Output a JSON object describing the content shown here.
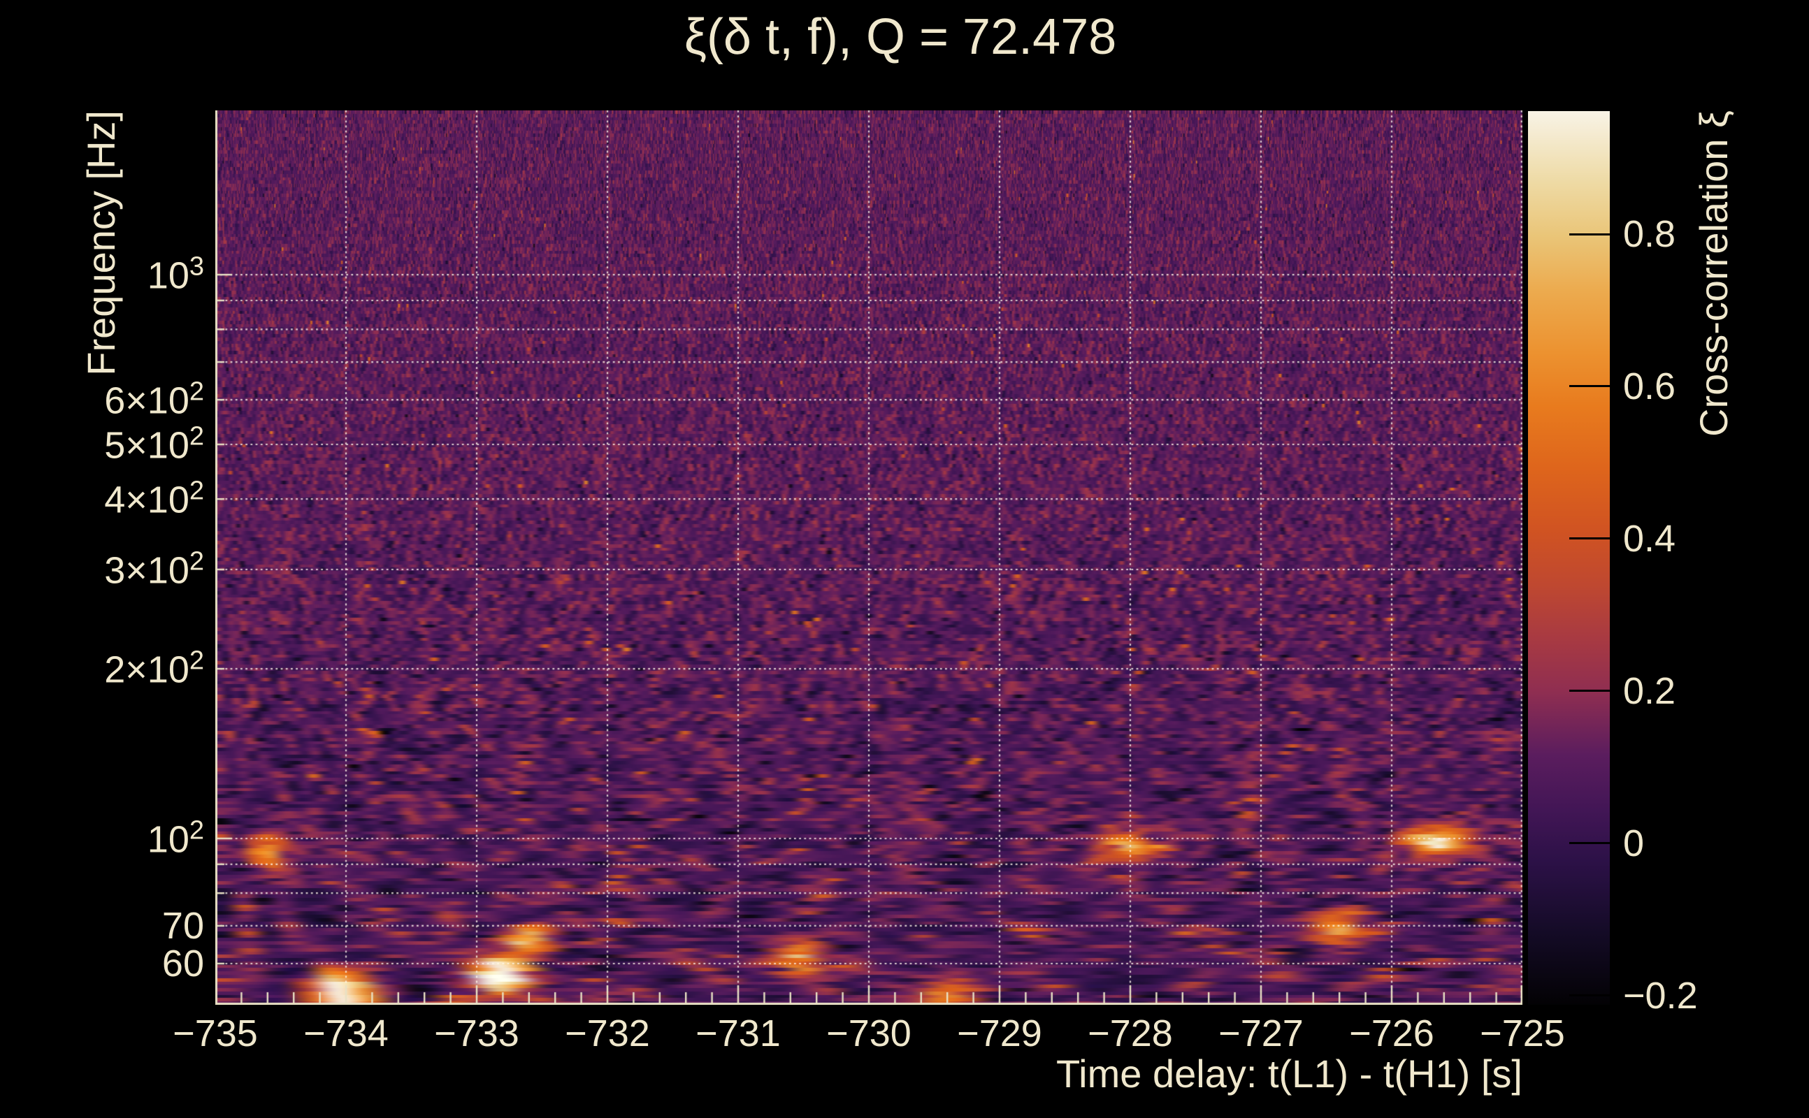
{
  "title": {
    "text": "ξ(δ t, f), Q = 72.478"
  },
  "axes": {
    "x": {
      "label": "Time delay: t(L1) - t(H1) [s]",
      "range": [
        -735,
        -725
      ],
      "minor_step": 0.2,
      "ticks": [
        {
          "value": -735,
          "label": "−735"
        },
        {
          "value": -734,
          "label": "−734"
        },
        {
          "value": -733,
          "label": "−733"
        },
        {
          "value": -732,
          "label": "−732"
        },
        {
          "value": -731,
          "label": "−731"
        },
        {
          "value": -730,
          "label": "−730"
        },
        {
          "value": -729,
          "label": "−729"
        },
        {
          "value": -728,
          "label": "−728"
        },
        {
          "value": -727,
          "label": "−727"
        },
        {
          "value": -726,
          "label": "−726"
        },
        {
          "value": -725,
          "label": "−725"
        }
      ]
    },
    "y": {
      "label": "Frequency [Hz]",
      "scale": "log",
      "range": [
        50.7,
        1956
      ],
      "ticks": [
        {
          "value": 1000,
          "base": "10",
          "exp": "3"
        },
        {
          "value": 600,
          "base": "6×10",
          "exp": "2"
        },
        {
          "value": 500,
          "base": "5×10",
          "exp": "2"
        },
        {
          "value": 400,
          "base": "4×10",
          "exp": "2"
        },
        {
          "value": 300,
          "base": "3×10",
          "exp": "2"
        },
        {
          "value": 200,
          "base": "2×10",
          "exp": "2"
        },
        {
          "value": 100,
          "base": "10",
          "exp": "2"
        },
        {
          "value": 70,
          "base": "70",
          "exp": ""
        },
        {
          "value": 60,
          "base": "60",
          "exp": ""
        }
      ],
      "gridlines": [
        1000,
        900,
        800,
        700,
        600,
        500,
        400,
        300,
        200,
        100,
        90,
        80,
        70,
        60
      ]
    },
    "colorbar": {
      "label": "Cross-correlation ξ",
      "range": [
        -0.212,
        0.9615
      ],
      "ticks": [
        {
          "value": 0.8,
          "label": "0.8"
        },
        {
          "value": 0.6,
          "label": "0.6"
        },
        {
          "value": 0.4,
          "label": "0.4"
        },
        {
          "value": 0.2,
          "label": "0.2"
        },
        {
          "value": 0,
          "label": "0"
        },
        {
          "value": -0.2,
          "label": "−0.2"
        }
      ]
    }
  },
  "colors": {
    "background": "#000000",
    "text": "#f0e8cd",
    "frame": "#e9e1c4",
    "grid": "rgba(255,248,235,0.8)",
    "colorbar_tick": "#000000"
  },
  "chart_data": {
    "type": "heatmap",
    "title": "ξ(δ t, f), Q = 72.478",
    "q_value": 72.478,
    "xlabel": "Time delay: t(L1) - t(H1) [s]",
    "ylabel": "Frequency [Hz]",
    "zlabel": "Cross-correlation ξ",
    "xlim": [
      -735,
      -725
    ],
    "ylim": [
      50.7,
      1956
    ],
    "yscale": "log",
    "zlim": [
      -0.212,
      0.9615
    ],
    "x_major_ticks": [
      -735,
      -734,
      -733,
      -732,
      -731,
      -730,
      -729,
      -728,
      -727,
      -726,
      -725
    ],
    "x_minor_step": 0.2,
    "y_gridlines": [
      1000,
      900,
      800,
      700,
      600,
      500,
      400,
      300,
      200,
      100,
      90,
      80,
      70,
      60
    ],
    "colorbar_ticks": [
      0.8,
      0.6,
      0.4,
      0.2,
      0,
      -0.2
    ],
    "grid": true,
    "legend_position": "right-colorbar",
    "colormap_stops": [
      [
        0.0,
        "#030204"
      ],
      [
        0.08,
        "#140b26"
      ],
      [
        0.16,
        "#2c1147"
      ],
      [
        0.22,
        "#431656"
      ],
      [
        0.28,
        "#5b1d5e"
      ],
      [
        0.35,
        "#8f2e51"
      ],
      [
        0.41,
        "#a83a42"
      ],
      [
        0.47,
        "#bf4830"
      ],
      [
        0.53,
        "#d05322"
      ],
      [
        0.6,
        "#de651c"
      ],
      [
        0.67,
        "#e87b1e"
      ],
      [
        0.73,
        "#ec9230"
      ],
      [
        0.8,
        "#ecab4f"
      ],
      [
        0.86,
        "#eac578"
      ],
      [
        0.92,
        "#eedaa4"
      ],
      [
        1.0,
        "#f8f3e6"
      ]
    ],
    "texture": {
      "description": "Q-transform cross-correlation noise field: fine purple/maroon speckle at high frequency, broad horizontal orange streaks below ~150 Hz",
      "seed": 1234567,
      "rows": 268,
      "q": 72.478,
      "base_mean": 0.115,
      "base_sigma": 0.075
    },
    "peaks": [
      {
        "t": -732.75,
        "f": 58,
        "a": 0.93,
        "st": 0.13,
        "sf": 0.045,
        "note": "brightest near-white blob"
      },
      {
        "t": -732.55,
        "f": 67,
        "a": 0.42,
        "st": 0.1,
        "sf": 0.05
      },
      {
        "t": -734.05,
        "f": 56,
        "a": 0.5,
        "st": 0.12,
        "sf": 0.05
      },
      {
        "t": -733.95,
        "f": 51.5,
        "a": 0.45,
        "st": 0.15,
        "sf": 0.05
      },
      {
        "t": -729.2,
        "f": 52,
        "a": 0.42,
        "st": 0.12,
        "sf": 0.05
      },
      {
        "t": -725.5,
        "f": 100,
        "a": 0.48,
        "st": 0.18,
        "sf": 0.04
      },
      {
        "t": -727.9,
        "f": 98,
        "a": 0.4,
        "st": 0.15,
        "sf": 0.04
      },
      {
        "t": -734.6,
        "f": 95,
        "a": 0.38,
        "st": 0.1,
        "sf": 0.05
      },
      {
        "t": -726.2,
        "f": 70,
        "a": 0.42,
        "st": 0.12,
        "sf": 0.05
      },
      {
        "t": -730.4,
        "f": 62,
        "a": 0.38,
        "st": 0.1,
        "sf": 0.05
      }
    ]
  }
}
